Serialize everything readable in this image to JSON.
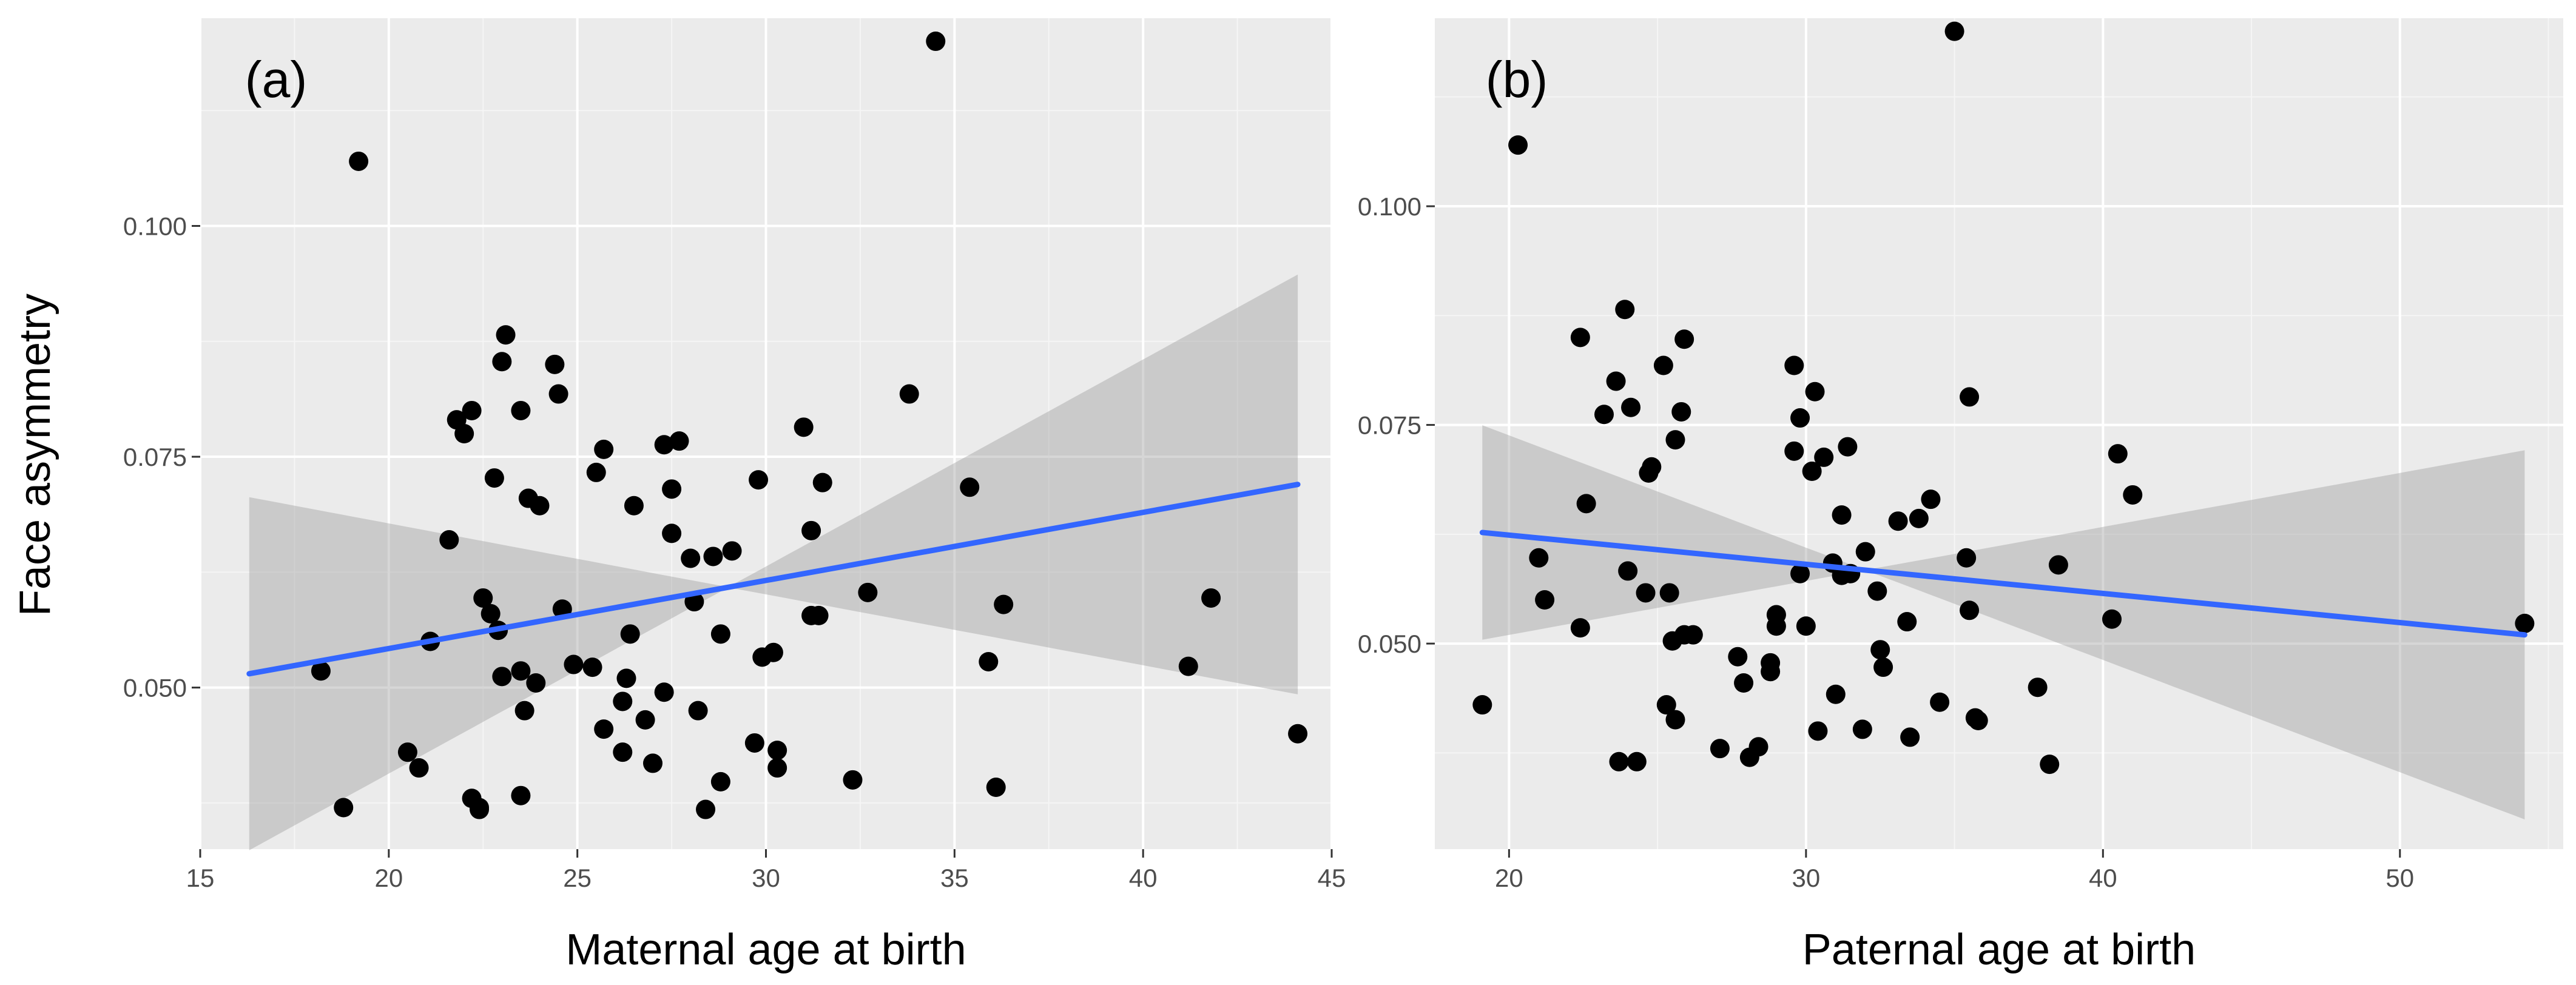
{
  "colors": {
    "panel_bg": "#ebebeb",
    "grid": "#ffffff",
    "fit_line": "#3366ff",
    "ribbon": "#999999",
    "points": "#000000"
  },
  "figure": {
    "ylabel": "Face asymmetry"
  },
  "chart_data": [
    {
      "type": "scatter",
      "panel_label": "(a)",
      "title": "",
      "xlabel": "Maternal age at birth",
      "ylabel": "Face asymmetry",
      "xlim": [
        15,
        45
      ],
      "ylim": [
        0.0325,
        0.1225
      ],
      "xticks": [
        15,
        20,
        25,
        30,
        35,
        40,
        45
      ],
      "yticks": [
        0.05,
        0.075,
        0.1
      ],
      "ytick_labels": [
        "0.050",
        "0.075",
        "0.100"
      ],
      "grid": true,
      "points": [
        [
          19.2,
          0.107
        ],
        [
          34.5,
          0.12
        ],
        [
          18.2,
          0.0518
        ],
        [
          18.8,
          0.037
        ],
        [
          20.5,
          0.043
        ],
        [
          20.8,
          0.0413
        ],
        [
          21.1,
          0.055
        ],
        [
          21.6,
          0.066
        ],
        [
          21.8,
          0.079
        ],
        [
          22.0,
          0.0775
        ],
        [
          22.2,
          0.08
        ],
        [
          22.2,
          0.038
        ],
        [
          22.4,
          0.037
        ],
        [
          22.4,
          0.0368
        ],
        [
          22.5,
          0.0597
        ],
        [
          22.7,
          0.058
        ],
        [
          22.8,
          0.0727
        ],
        [
          22.9,
          0.0562
        ],
        [
          23.0,
          0.0512
        ],
        [
          23.0,
          0.0853
        ],
        [
          23.1,
          0.0882
        ],
        [
          23.5,
          0.0518
        ],
        [
          23.5,
          0.08
        ],
        [
          23.5,
          0.0383
        ],
        [
          23.6,
          0.0475
        ],
        [
          23.7,
          0.0705
        ],
        [
          23.9,
          0.0505
        ],
        [
          24.0,
          0.0697
        ],
        [
          24.4,
          0.085
        ],
        [
          24.5,
          0.0818
        ],
        [
          24.6,
          0.0585
        ],
        [
          24.9,
          0.0525
        ],
        [
          25.4,
          0.0522
        ],
        [
          25.5,
          0.0733
        ],
        [
          25.7,
          0.0758
        ],
        [
          25.7,
          0.0455
        ],
        [
          26.2,
          0.0485
        ],
        [
          26.2,
          0.043
        ],
        [
          26.3,
          0.051
        ],
        [
          26.4,
          0.0558
        ],
        [
          26.5,
          0.0697
        ],
        [
          26.8,
          0.0465
        ],
        [
          27.0,
          0.0418
        ],
        [
          27.3,
          0.0763
        ],
        [
          27.3,
          0.0495
        ],
        [
          27.5,
          0.0715
        ],
        [
          27.5,
          0.0667
        ],
        [
          27.7,
          0.0767
        ],
        [
          28.0,
          0.064
        ],
        [
          28.1,
          0.0593
        ],
        [
          28.2,
          0.0475
        ],
        [
          28.4,
          0.0368
        ],
        [
          28.6,
          0.0642
        ],
        [
          28.8,
          0.0558
        ],
        [
          28.8,
          0.0398
        ],
        [
          29.1,
          0.0648
        ],
        [
          29.7,
          0.044
        ],
        [
          29.8,
          0.0725
        ],
        [
          29.9,
          0.0533
        ],
        [
          30.2,
          0.0538
        ],
        [
          30.3,
          0.0432
        ],
        [
          30.3,
          0.0413
        ],
        [
          31.0,
          0.0782
        ],
        [
          31.2,
          0.067
        ],
        [
          31.2,
          0.0578
        ],
        [
          31.4,
          0.0578
        ],
        [
          31.5,
          0.0722
        ],
        [
          32.3,
          0.04
        ],
        [
          32.7,
          0.0603
        ],
        [
          33.8,
          0.0818
        ],
        [
          35.4,
          0.0717
        ],
        [
          35.9,
          0.0528
        ],
        [
          36.1,
          0.0392
        ],
        [
          36.3,
          0.059
        ],
        [
          41.2,
          0.0523
        ],
        [
          41.8,
          0.0597
        ],
        [
          44.1,
          0.045
        ]
      ],
      "fit": {
        "method": "lm",
        "x_range": [
          16.3,
          44.1
        ],
        "y_at_ends": [
          0.0515,
          0.072
        ],
        "ci_lower": [
          0.0405,
          0.055
        ],
        "ci_upper": [
          0.0625,
          0.088
        ],
        "ci_center_x": 29.0
      }
    },
    {
      "type": "scatter",
      "panel_label": "(b)",
      "title": "",
      "xlabel": "Paternal age at birth",
      "ylabel": "",
      "xlim": [
        17.5,
        55.5
      ],
      "ylim": [
        0.0265,
        0.1215
      ],
      "xticks": [
        20,
        30,
        40,
        50
      ],
      "yticks": [
        0.05,
        0.075,
        0.1
      ],
      "ytick_labels": [
        "0.050",
        "0.075",
        "0.100"
      ],
      "grid": true,
      "points": [
        [
          20.3,
          0.107
        ],
        [
          35.0,
          0.12
        ],
        [
          19.1,
          0.043
        ],
        [
          21.0,
          0.0598
        ],
        [
          21.2,
          0.055
        ],
        [
          22.4,
          0.0518
        ],
        [
          22.4,
          0.085
        ],
        [
          22.6,
          0.066
        ],
        [
          23.2,
          0.0762
        ],
        [
          23.6,
          0.08
        ],
        [
          23.7,
          0.0365
        ],
        [
          23.9,
          0.0882
        ],
        [
          24.0,
          0.0583
        ],
        [
          24.1,
          0.077
        ],
        [
          24.3,
          0.0365
        ],
        [
          24.6,
          0.0558
        ],
        [
          24.7,
          0.0695
        ],
        [
          24.8,
          0.0702
        ],
        [
          25.2,
          0.0818
        ],
        [
          25.3,
          0.043
        ],
        [
          25.4,
          0.0558
        ],
        [
          25.5,
          0.0503
        ],
        [
          25.6,
          0.0733
        ],
        [
          25.6,
          0.0413
        ],
        [
          25.8,
          0.0765
        ],
        [
          25.9,
          0.0848
        ],
        [
          25.9,
          0.051
        ],
        [
          26.2,
          0.051
        ],
        [
          27.1,
          0.038
        ],
        [
          27.7,
          0.0485
        ],
        [
          27.9,
          0.0455
        ],
        [
          28.1,
          0.037
        ],
        [
          28.4,
          0.0382
        ],
        [
          28.8,
          0.0468
        ],
        [
          28.8,
          0.0478
        ],
        [
          29.0,
          0.052
        ],
        [
          29.0,
          0.0533
        ],
        [
          29.6,
          0.0818
        ],
        [
          29.6,
          0.072
        ],
        [
          29.8,
          0.0758
        ],
        [
          29.8,
          0.058
        ],
        [
          30.0,
          0.052
        ],
        [
          30.2,
          0.0697
        ],
        [
          30.3,
          0.0788
        ],
        [
          30.4,
          0.04
        ],
        [
          30.6,
          0.0713
        ],
        [
          30.9,
          0.0592
        ],
        [
          31.0,
          0.0442
        ],
        [
          31.2,
          0.0647
        ],
        [
          31.2,
          0.0578
        ],
        [
          31.4,
          0.0725
        ],
        [
          31.5,
          0.058
        ],
        [
          31.9,
          0.0402
        ],
        [
          32.0,
          0.0605
        ],
        [
          32.4,
          0.056
        ],
        [
          32.5,
          0.0493
        ],
        [
          32.6,
          0.0473
        ],
        [
          33.1,
          0.064
        ],
        [
          33.4,
          0.0525
        ],
        [
          33.5,
          0.0393
        ],
        [
          33.8,
          0.0643
        ],
        [
          34.2,
          0.0665
        ],
        [
          34.5,
          0.0433
        ],
        [
          35.4,
          0.0598
        ],
        [
          35.5,
          0.0782
        ],
        [
          35.5,
          0.0538
        ],
        [
          35.7,
          0.0415
        ],
        [
          35.8,
          0.0412
        ],
        [
          37.8,
          0.045
        ],
        [
          38.2,
          0.0362
        ],
        [
          38.5,
          0.059
        ],
        [
          40.3,
          0.0528
        ],
        [
          40.5,
          0.0717
        ],
        [
          41.0,
          0.067
        ],
        [
          54.2,
          0.0523
        ]
      ],
      "fit": {
        "method": "lm",
        "x_range": [
          19.1,
          54.2
        ],
        "y_at_ends": [
          0.0627,
          0.051
        ],
        "ci_lower": [
          0.0533,
          0.0315
        ],
        "ci_upper": [
          0.0722,
          0.0707
        ],
        "ci_center_x": 32.0
      }
    }
  ]
}
